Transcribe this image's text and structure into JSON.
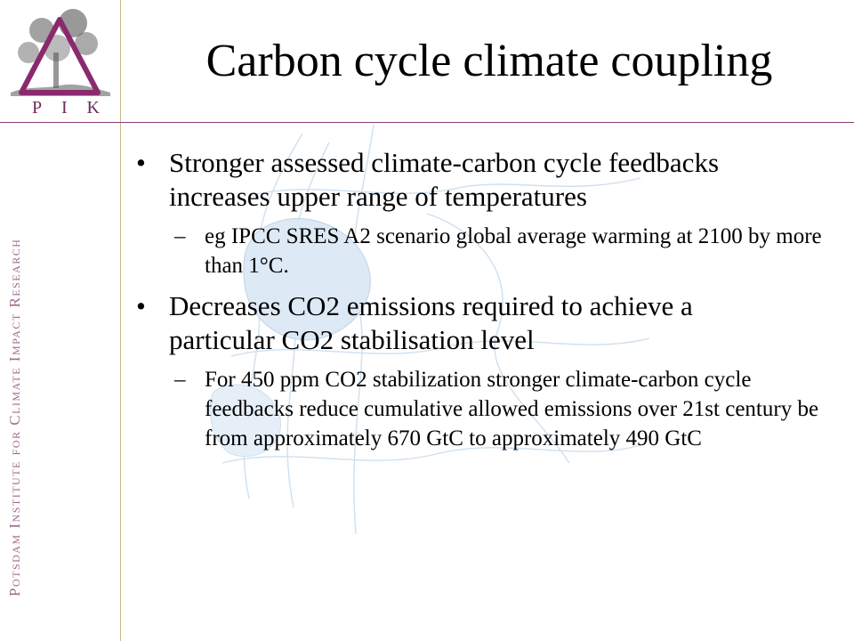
{
  "slide": {
    "title": "Carbon cycle climate coupling",
    "bullets": [
      {
        "marker": "•",
        "text": "Stronger assessed climate-carbon cycle feedbacks increases upper range of temperatures",
        "sub": [
          {
            "marker": "–",
            "text": "eg IPCC SRES A2 scenario  global average warming at 2100 by more than 1°C."
          }
        ]
      },
      {
        "marker": "•",
        "text": "Decreases CO2 emissions required to achieve a particular CO2 stabilisation level",
        "sub": [
          {
            "marker": "–",
            "text": "For 450 ppm CO2 stabilization stronger climate-carbon cycle feedbacks reduce cumulative allowed emissions over 21st century be from approximately 670  GtC  to approximately 490 GtC"
          }
        ]
      }
    ]
  },
  "branding": {
    "logo_letters": [
      "P",
      "I",
      "K"
    ],
    "vertical_name": "Potsdam Institute for Climate Impact Research",
    "accent_color": "#8a3c74",
    "rule_color": "#c9b98a"
  }
}
